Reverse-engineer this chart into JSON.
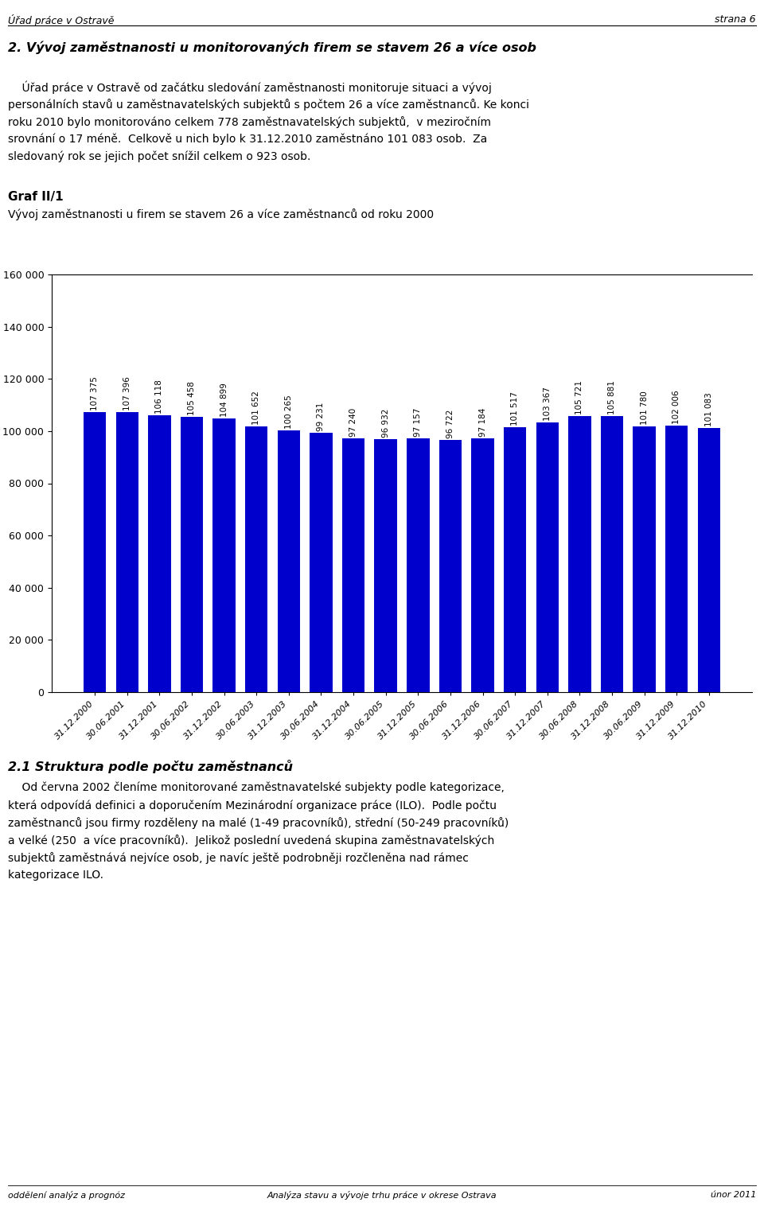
{
  "header_left": "Úřad práce v Ostravě",
  "header_right": "strana 6",
  "section_title": "2. Vývoj zaměstnanosti u monitorovaných firem se stavem 26 a více osob",
  "body1": "    Úřad práce v Ostravě od začátku sledování zaměstnanosti monitoruje situaci a vývoj personálních stavů u zaměstnavatelských subjektů s počtem 26 a více zaměstnanců. Ke konci roku 2010 bylo monitorováno celkem 778 zaměstnavatelských subjektů, v meziročním srovnání o 17 méně.  Celkově u nich bylo k 31.12.2010 zaměstnáno 101 083 osob.  Za sledovaný rok se jejich počet snížil celkem o 923 osob.",
  "graf_title_bold": "Graf II/1",
  "graf_title_sub": "Vývoj zaměstnanosti u firem se stavem 26 a více zaměstnanců od roku 2000",
  "categories": [
    "31.12.2000",
    "30.06.2001",
    "31.12.2001",
    "30.06.2002",
    "31.12.2002",
    "30.06.2003",
    "31.12.2003",
    "30.06.2004",
    "31.12.2004",
    "30.06.2005",
    "31.12.2005",
    "30.06.2006",
    "31.12.2006",
    "30.06.2007",
    "31.12.2007",
    "30.06.2008",
    "31.12.2008",
    "30.06.2009",
    "31.12.2009",
    "31.12.2010"
  ],
  "values": [
    107375,
    107396,
    106118,
    105458,
    104899,
    101652,
    100265,
    99231,
    97240,
    96932,
    97157,
    96722,
    97184,
    101517,
    103367,
    105721,
    105881,
    101780,
    102006,
    101083
  ],
  "bar_color": "#0000cc",
  "ylim": [
    0,
    160000
  ],
  "yticks": [
    0,
    20000,
    40000,
    60000,
    80000,
    100000,
    120000,
    140000,
    160000
  ],
  "section2_title": "2.1 Struktura podle počtu zaměstnanců",
  "body2": "    Od června 2002 členíme monitorované zaměstnavatelské subjekty podle kategorizace, která odpovídá definici a doporučením Mezinárodní organizace práce (ILO).  Podle počtu zaměstnanců jsou firmy rozděleny na malé (1-49 pracovníků), střední (50-249 pracovníků) a velké (250  a více pracovníků).  Jelikož poslední uvedená skupina zaměstnavatelských subjektů zaměstnává nejvíce osob, je navíc ještě podrobněji rozčleněna nad rámec kategorizace ILO.",
  "footer_left": "oddělení analýz a prognóz",
  "footer_center": "Analýza stavu a vývoje trhu práce v okrese Ostrava",
  "footer_right": "únor 2011",
  "bar_width": 0.7,
  "bar_label_fontsize": 7.5,
  "background_color": "#ffffff"
}
